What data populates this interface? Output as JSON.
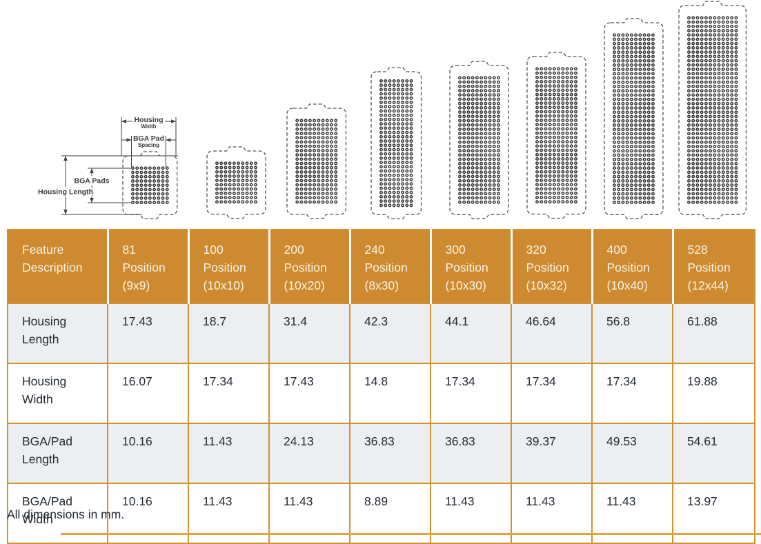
{
  "diagram": {
    "labels": {
      "housing_width": "Housing",
      "housing_width_sub": "Width",
      "pad_spacing": "BGA Pad",
      "pad_spacing_sub": "Spacing",
      "bga_pads": "BGA Pads",
      "housing_length": "Housing Length"
    },
    "packages": [
      {
        "name": "81 Position",
        "grid": "9x9"
      },
      {
        "name": "100 Position",
        "grid": "10x10"
      },
      {
        "name": "200 Position",
        "grid": "10x20"
      },
      {
        "name": "240 Position",
        "grid": "8x30"
      },
      {
        "name": "300 Position",
        "grid": "10x30"
      },
      {
        "name": "320 Position",
        "grid": "10x32"
      },
      {
        "name": "400 Position",
        "grid": "10x40"
      },
      {
        "name": "528 Position",
        "grid": "12x44"
      }
    ]
  },
  "table": {
    "columns": [
      "Feature\nDescription",
      "81\nPosition\n(9x9)",
      "100\nPosition\n(10x10)",
      "200\nPosition\n(10x20)",
      "240\nPosition\n(8x30)",
      "300\nPosition\n(10x30)",
      "320\nPosition\n(10x32)",
      "400\nPosition\n(10x40)",
      "528\nPosition\n(12x44)"
    ],
    "rows": [
      {
        "label": "Housing\nLength",
        "values": [
          "17.43",
          "18.7",
          "31.4",
          "42.3",
          "44.1",
          "46.64",
          "56.8",
          "61.88"
        ]
      },
      {
        "label": "Housing\nWidth",
        "values": [
          "16.07",
          "17.34",
          "17.43",
          "14.8",
          "17.34",
          "17.34",
          "17.34",
          "19.88"
        ]
      },
      {
        "label": "BGA/Pad\nLength",
        "values": [
          "10.16",
          "11.43",
          "24.13",
          "36.83",
          "36.83",
          "39.37",
          "49.53",
          "54.61"
        ]
      },
      {
        "label": "BGA/Pad\nWidth",
        "values": [
          "10.16",
          "11.43",
          "11.43",
          "8.89",
          "11.43",
          "11.43",
          "11.43",
          "13.97"
        ]
      }
    ]
  },
  "footer": {
    "note": "All dimensions in mm."
  },
  "colors": {
    "header_bg": "#cd8a31",
    "table_border": "#d3902f",
    "row_alt_bg": "#eceef0",
    "text_dark": "#242b33",
    "header_text": "#faf3e4",
    "bottom_rule": "#e8a43c"
  }
}
